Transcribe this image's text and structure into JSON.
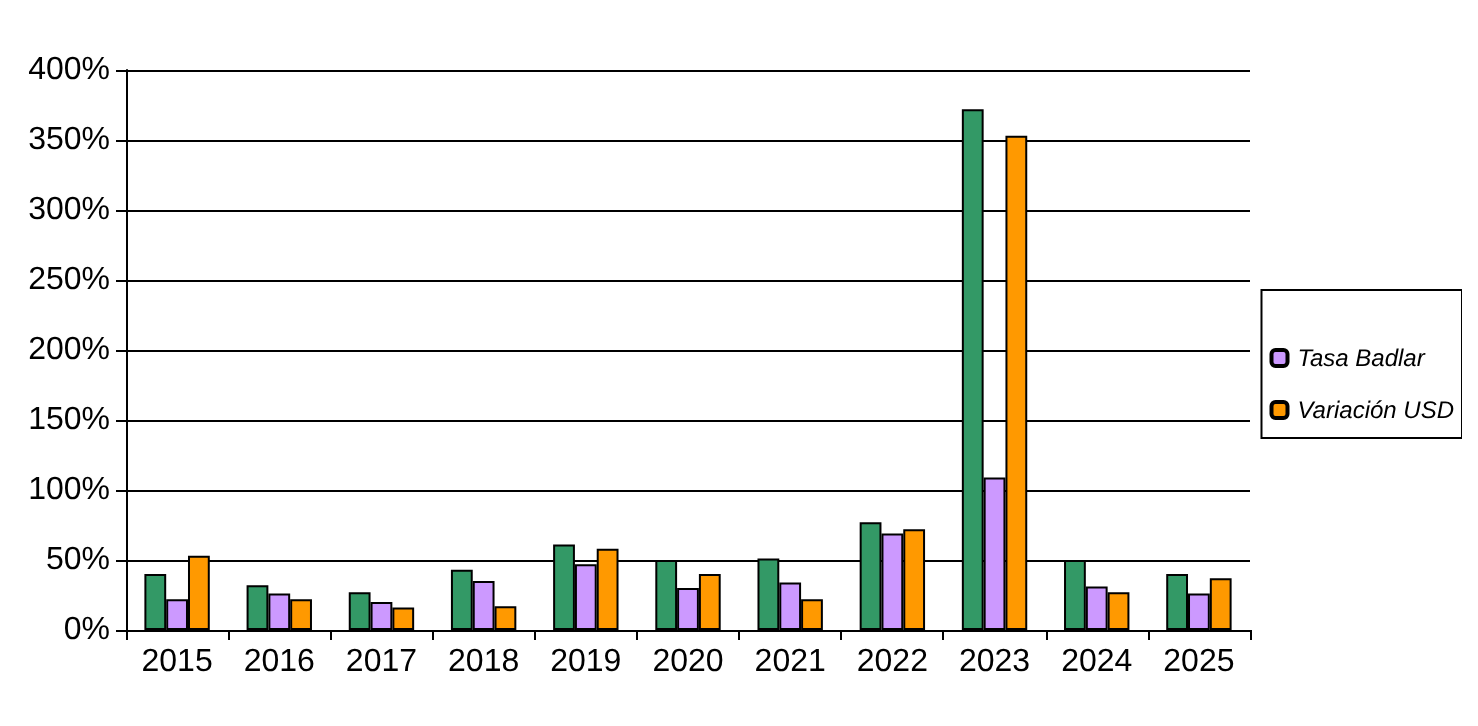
{
  "chart_data": {
    "type": "bar",
    "categories": [
      "2015",
      "2016",
      "2017",
      "2018",
      "2019",
      "2020",
      "2021",
      "2022",
      "2023",
      "2024",
      "2025"
    ],
    "series": [
      {
        "color": "#339966",
        "values": [
          40,
          32,
          27,
          43,
          61,
          50,
          51,
          77,
          372,
          50,
          40
        ]
      },
      {
        "name": "Tasa Badlar",
        "color": "#cc99ff",
        "values": [
          22,
          26,
          20,
          35,
          47,
          30,
          34,
          69,
          109,
          31,
          26
        ]
      },
      {
        "name": "Variación USD",
        "color": "#ff9900",
        "values": [
          53,
          22,
          16,
          17,
          58,
          40,
          22,
          72,
          353,
          27,
          37
        ]
      }
    ],
    "ylim": [
      0,
      400
    ],
    "yticks": [
      {
        "value": 0,
        "label": "0%"
      },
      {
        "value": 50,
        "label": "50%"
      },
      {
        "value": 100,
        "label": "100%"
      },
      {
        "value": 150,
        "label": "150%"
      },
      {
        "value": 200,
        "label": "200%"
      },
      {
        "value": 250,
        "label": "250%"
      },
      {
        "value": 300,
        "label": "300%"
      },
      {
        "value": 350,
        "label": "350%"
      },
      {
        "value": 400,
        "label": "400%"
      }
    ],
    "grid": "y",
    "legend": "right"
  }
}
